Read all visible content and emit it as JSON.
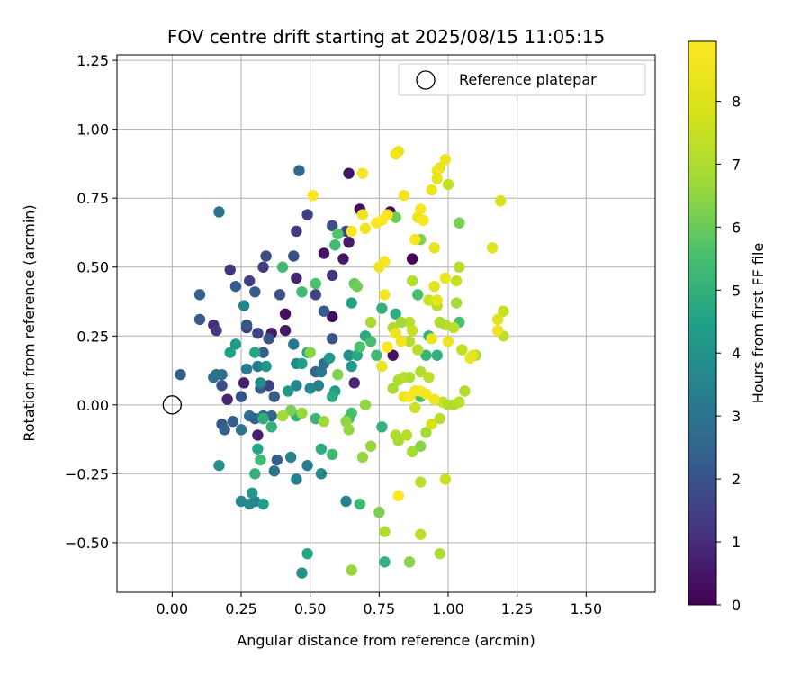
{
  "chart_data": {
    "type": "scatter",
    "title": "FOV centre drift starting at 2025/08/15 11:05:15",
    "xlabel": "Angular distance from reference (arcmin)",
    "ylabel": "Rotation from reference (arcmin)",
    "xlim": [
      -0.2,
      1.75
    ],
    "ylim": [
      -0.68,
      1.27
    ],
    "xticks": [
      "0.00",
      "0.25",
      "0.50",
      "0.75",
      "1.00",
      "1.25",
      "1.50"
    ],
    "xtick_values": [
      0,
      0.25,
      0.5,
      0.75,
      1.0,
      1.25,
      1.5
    ],
    "yticks": [
      "−0.50",
      "−0.25",
      "0.00",
      "0.25",
      "0.50",
      "0.75",
      "1.00",
      "1.25"
    ],
    "ytick_values": [
      -0.5,
      -0.25,
      0,
      0.25,
      0.5,
      0.75,
      1.0,
      1.25
    ],
    "grid": true,
    "legend": {
      "label": "Reference platepar",
      "placement": "top-right"
    },
    "reference_point": {
      "x": 0,
      "y": 0
    },
    "colorbar": {
      "label": "Hours from first FF file",
      "colormap": "viridis",
      "range": [
        0,
        8.95
      ],
      "ticks": [
        "0",
        "1",
        "2",
        "3",
        "4",
        "5",
        "6",
        "7",
        "8"
      ],
      "tick_values": [
        0,
        1,
        2,
        3,
        4,
        5,
        6,
        7,
        8
      ]
    },
    "points": [
      {
        "x": 0.68,
        "y": 0.71,
        "c": 0.3
      },
      {
        "x": 0.79,
        "y": 0.7,
        "c": 0.2
      },
      {
        "x": 0.64,
        "y": 0.84,
        "c": 0.4
      },
      {
        "x": 0.55,
        "y": 0.55,
        "c": 0.4
      },
      {
        "x": 0.62,
        "y": 0.53,
        "c": 0.5
      },
      {
        "x": 0.64,
        "y": 0.59,
        "c": 0.6
      },
      {
        "x": 0.58,
        "y": 0.32,
        "c": 0.3
      },
      {
        "x": 0.41,
        "y": 0.27,
        "c": 0.5
      },
      {
        "x": 0.41,
        "y": 0.33,
        "c": 0.3
      },
      {
        "x": 0.36,
        "y": 0.26,
        "c": 0.6
      },
      {
        "x": 0.87,
        "y": 0.53,
        "c": 0.1
      },
      {
        "x": 0.8,
        "y": 0.18,
        "c": 0.4
      },
      {
        "x": 0.45,
        "y": 0.46,
        "c": 0.8
      },
      {
        "x": 0.66,
        "y": 0.08,
        "c": 0.9
      },
      {
        "x": 0.26,
        "y": 0.08,
        "c": 0.7
      },
      {
        "x": 0.2,
        "y": 0.02,
        "c": 0.8
      },
      {
        "x": 0.31,
        "y": -0.11,
        "c": 0.7
      },
      {
        "x": 0.15,
        "y": 0.29,
        "c": 1.0
      },
      {
        "x": 0.16,
        "y": 0.27,
        "c": 1.3
      },
      {
        "x": 0.33,
        "y": 0.5,
        "c": 1.4
      },
      {
        "x": 0.21,
        "y": 0.49,
        "c": 1.2
      },
      {
        "x": 0.28,
        "y": 0.45,
        "c": 1.5
      },
      {
        "x": 0.34,
        "y": 0.54,
        "c": 1.8
      },
      {
        "x": 0.44,
        "y": 0.54,
        "c": 1.9
      },
      {
        "x": 0.45,
        "y": 0.63,
        "c": 1.4
      },
      {
        "x": 0.49,
        "y": 0.69,
        "c": 1.5
      },
      {
        "x": 0.58,
        "y": 0.47,
        "c": 1.2
      },
      {
        "x": 0.58,
        "y": 0.65,
        "c": 1.9
      },
      {
        "x": 0.63,
        "y": 0.63,
        "c": 1.6
      },
      {
        "x": 0.52,
        "y": 0.4,
        "c": 1.6
      },
      {
        "x": 0.39,
        "y": 0.4,
        "c": 1.9
      },
      {
        "x": 0.3,
        "y": 0.41,
        "c": 2.2
      },
      {
        "x": 0.23,
        "y": 0.43,
        "c": 2.3
      },
      {
        "x": 0.1,
        "y": 0.4,
        "c": 2.4
      },
      {
        "x": 0.1,
        "y": 0.31,
        "c": 2.2
      },
      {
        "x": 0.18,
        "y": 0.07,
        "c": 1.9
      },
      {
        "x": 0.25,
        "y": 0.03,
        "c": 2.0
      },
      {
        "x": 0.32,
        "y": 0.06,
        "c": 2.2
      },
      {
        "x": 0.35,
        "y": 0.07,
        "c": 1.5
      },
      {
        "x": 0.37,
        "y": 0.03,
        "c": 2.3
      },
      {
        "x": 0.27,
        "y": 0.28,
        "c": 1.4
      },
      {
        "x": 0.31,
        "y": 0.26,
        "c": 1.6
      },
      {
        "x": 0.35,
        "y": 0.24,
        "c": 2.0
      },
      {
        "x": 0.33,
        "y": 0.19,
        "c": 2.3
      },
      {
        "x": 0.27,
        "y": 0.29,
        "c": 2.1
      },
      {
        "x": 0.55,
        "y": 0.34,
        "c": 2.2
      },
      {
        "x": 0.58,
        "y": 0.24,
        "c": 2.0
      },
      {
        "x": 0.46,
        "y": 0.85,
        "c": 2.6
      },
      {
        "x": 0.17,
        "y": 0.7,
        "c": 3.0
      },
      {
        "x": 0.03,
        "y": 0.11,
        "c": 2.3
      },
      {
        "x": 0.16,
        "y": 0.11,
        "c": 2.6
      },
      {
        "x": 0.18,
        "y": 0.11,
        "c": 2.8
      },
      {
        "x": 0.15,
        "y": 0.1,
        "c": 2.9
      },
      {
        "x": 0.18,
        "y": -0.07,
        "c": 2.1
      },
      {
        "x": 0.19,
        "y": -0.09,
        "c": 2.4
      },
      {
        "x": 0.22,
        "y": -0.06,
        "c": 2.3
      },
      {
        "x": 0.25,
        "y": -0.09,
        "c": 3.0
      },
      {
        "x": 0.28,
        "y": -0.04,
        "c": 2.8
      },
      {
        "x": 0.3,
        "y": -0.05,
        "c": 2.5
      },
      {
        "x": 0.33,
        "y": -0.04,
        "c": 2.9
      },
      {
        "x": 0.36,
        "y": -0.04,
        "c": 2.6
      },
      {
        "x": 0.38,
        "y": -0.2,
        "c": 2.3
      },
      {
        "x": 0.3,
        "y": -0.35,
        "c": 3.3
      },
      {
        "x": 0.25,
        "y": -0.35,
        "c": 3.6
      },
      {
        "x": 0.28,
        "y": -0.36,
        "c": 3.7
      },
      {
        "x": 0.29,
        "y": -0.32,
        "c": 4.1
      },
      {
        "x": 0.33,
        "y": -0.36,
        "c": 4.4
      },
      {
        "x": 0.47,
        "y": -0.61,
        "c": 4.0
      },
      {
        "x": 0.49,
        "y": -0.54,
        "c": 4.6
      },
      {
        "x": 0.37,
        "y": -0.24,
        "c": 3.0
      },
      {
        "x": 0.45,
        "y": -0.27,
        "c": 3.4
      },
      {
        "x": 0.54,
        "y": -0.25,
        "c": 3.7
      },
      {
        "x": 0.63,
        "y": -0.35,
        "c": 3.5
      },
      {
        "x": 0.43,
        "y": -0.19,
        "c": 3.5
      },
      {
        "x": 0.49,
        "y": -0.22,
        "c": 3.3
      },
      {
        "x": 0.17,
        "y": -0.22,
        "c": 3.9
      },
      {
        "x": 0.27,
        "y": 0.13,
        "c": 3.3
      },
      {
        "x": 0.31,
        "y": 0.14,
        "c": 3.2
      },
      {
        "x": 0.26,
        "y": 0.36,
        "c": 3.6
      },
      {
        "x": 0.21,
        "y": 0.19,
        "c": 4.5
      },
      {
        "x": 0.23,
        "y": 0.22,
        "c": 4.3
      },
      {
        "x": 0.3,
        "y": 0.19,
        "c": 4.6
      },
      {
        "x": 0.32,
        "y": 0.08,
        "c": 3.7
      },
      {
        "x": 0.34,
        "y": 0.14,
        "c": 4.1
      },
      {
        "x": 0.44,
        "y": 0.22,
        "c": 3.2
      },
      {
        "x": 0.45,
        "y": 0.07,
        "c": 3.6
      },
      {
        "x": 0.52,
        "y": 0.12,
        "c": 2.5
      },
      {
        "x": 0.54,
        "y": 0.12,
        "c": 3.1
      },
      {
        "x": 0.55,
        "y": 0.15,
        "c": 2.8
      },
      {
        "x": 0.53,
        "y": 0.07,
        "c": 3.3
      },
      {
        "x": 0.5,
        "y": 0.06,
        "c": 3.6
      },
      {
        "x": 0.45,
        "y": 0.15,
        "c": 3.8
      },
      {
        "x": 0.42,
        "y": 0.05,
        "c": 4.2
      },
      {
        "x": 0.47,
        "y": 0.15,
        "c": 4.4
      },
      {
        "x": 0.49,
        "y": 0.19,
        "c": 4.6
      },
      {
        "x": 0.57,
        "y": 0.17,
        "c": 4.2
      },
      {
        "x": 0.59,
        "y": 0.05,
        "c": 4.4
      },
      {
        "x": 0.58,
        "y": 0.03,
        "c": 4.8
      },
      {
        "x": 0.64,
        "y": 0.18,
        "c": 3.9
      },
      {
        "x": 0.65,
        "y": 0.14,
        "c": 4.3
      },
      {
        "x": 0.67,
        "y": 0.18,
        "c": 4.7
      },
      {
        "x": 0.65,
        "y": 0.37,
        "c": 4.5
      },
      {
        "x": 0.7,
        "y": 0.25,
        "c": 4.8
      },
      {
        "x": 0.76,
        "y": 0.35,
        "c": 5.0
      },
      {
        "x": 0.3,
        "y": -0.25,
        "c": 5.0
      },
      {
        "x": 0.31,
        "y": -0.16,
        "c": 4.6
      },
      {
        "x": 0.32,
        "y": -0.2,
        "c": 5.4
      },
      {
        "x": 0.33,
        "y": -0.05,
        "c": 4.9
      },
      {
        "x": 0.36,
        "y": -0.08,
        "c": 5.0
      },
      {
        "x": 0.45,
        "y": -0.04,
        "c": 5.1
      },
      {
        "x": 0.52,
        "y": -0.05,
        "c": 5.2
      },
      {
        "x": 0.54,
        "y": -0.16,
        "c": 4.9
      },
      {
        "x": 0.58,
        "y": -0.18,
        "c": 5.3
      },
      {
        "x": 0.64,
        "y": -0.05,
        "c": 5.3
      },
      {
        "x": 0.65,
        "y": -0.03,
        "c": 5.5
      },
      {
        "x": 0.68,
        "y": -0.36,
        "c": 5.3
      },
      {
        "x": 0.77,
        "y": -0.57,
        "c": 5.0
      },
      {
        "x": 0.76,
        "y": -0.08,
        "c": 5.0
      },
      {
        "x": 0.4,
        "y": 0.5,
        "c": 5.3
      },
      {
        "x": 0.47,
        "y": 0.41,
        "c": 5.3
      },
      {
        "x": 0.52,
        "y": 0.44,
        "c": 5.6
      },
      {
        "x": 0.59,
        "y": 0.58,
        "c": 5.4
      },
      {
        "x": 0.6,
        "y": 0.62,
        "c": 5.7
      },
      {
        "x": 0.66,
        "y": 0.44,
        "c": 5.9
      },
      {
        "x": 0.67,
        "y": 0.43,
        "c": 6.1
      },
      {
        "x": 0.68,
        "y": 0.21,
        "c": 5.6
      },
      {
        "x": 0.72,
        "y": 0.23,
        "c": 5.5
      },
      {
        "x": 0.74,
        "y": 0.18,
        "c": 5.3
      },
      {
        "x": 0.81,
        "y": 0.33,
        "c": 4.9
      },
      {
        "x": 0.89,
        "y": 0.4,
        "c": 5.5
      },
      {
        "x": 0.92,
        "y": 0.18,
        "c": 5.1
      },
      {
        "x": 0.93,
        "y": 0.25,
        "c": 5.0
      },
      {
        "x": 0.96,
        "y": 0.18,
        "c": 5.0
      },
      {
        "x": 0.88,
        "y": 0.05,
        "c": 4.8
      },
      {
        "x": 0.9,
        "y": 0.03,
        "c": 5.4
      },
      {
        "x": 1.04,
        "y": 0.3,
        "c": 5.6
      },
      {
        "x": 1.04,
        "y": 0.66,
        "c": 6.2
      },
      {
        "x": 0.9,
        "y": 0.6,
        "c": 6.3
      },
      {
        "x": 0.81,
        "y": 0.68,
        "c": 6.1
      },
      {
        "x": 0.5,
        "y": 0.19,
        "c": 6.4
      },
      {
        "x": 0.6,
        "y": 0.11,
        "c": 6.3
      },
      {
        "x": 0.7,
        "y": 0.0,
        "c": 6.5
      },
      {
        "x": 0.47,
        "y": -0.03,
        "c": 6.6
      },
      {
        "x": 0.43,
        "y": -0.02,
        "c": 6.2
      },
      {
        "x": 0.4,
        "y": -0.04,
        "c": 6.8
      },
      {
        "x": 0.55,
        "y": -0.06,
        "c": 6.7
      },
      {
        "x": 0.63,
        "y": -0.06,
        "c": 6.5
      },
      {
        "x": 0.64,
        "y": -0.09,
        "c": 6.6
      },
      {
        "x": 0.69,
        "y": -0.19,
        "c": 6.6
      },
      {
        "x": 0.72,
        "y": -0.15,
        "c": 6.6
      },
      {
        "x": 0.75,
        "y": -0.39,
        "c": 6.2
      },
      {
        "x": 0.86,
        "y": -0.57,
        "c": 6.4
      },
      {
        "x": 0.65,
        "y": -0.6,
        "c": 6.6
      },
      {
        "x": 0.77,
        "y": -0.46,
        "c": 7.0
      },
      {
        "x": 0.81,
        "y": -0.11,
        "c": 7.0
      },
      {
        "x": 0.82,
        "y": -0.13,
        "c": 6.9
      },
      {
        "x": 0.85,
        "y": -0.11,
        "c": 7.2
      },
      {
        "x": 0.87,
        "y": -0.17,
        "c": 6.8
      },
      {
        "x": 0.9,
        "y": -0.15,
        "c": 6.4
      },
      {
        "x": 0.92,
        "y": -0.1,
        "c": 6.8
      },
      {
        "x": 0.9,
        "y": -0.28,
        "c": 7.2
      },
      {
        "x": 0.9,
        "y": -0.47,
        "c": 7.3
      },
      {
        "x": 0.97,
        "y": -0.54,
        "c": 7.0
      },
      {
        "x": 0.99,
        "y": -0.27,
        "c": 7.6
      },
      {
        "x": 0.94,
        "y": -0.07,
        "c": 7.8
      },
      {
        "x": 0.8,
        "y": 0.06,
        "c": 6.9
      },
      {
        "x": 0.82,
        "y": 0.09,
        "c": 7.0
      },
      {
        "x": 0.84,
        "y": 0.1,
        "c": 7.2
      },
      {
        "x": 0.86,
        "y": 0.1,
        "c": 7.0
      },
      {
        "x": 0.9,
        "y": 0.12,
        "c": 7.1
      },
      {
        "x": 0.88,
        "y": -0.01,
        "c": 7.6
      },
      {
        "x": 0.93,
        "y": 0.1,
        "c": 7.3
      },
      {
        "x": 0.97,
        "y": -0.05,
        "c": 7.2
      },
      {
        "x": 0.98,
        "y": 0.01,
        "c": 7.5
      },
      {
        "x": 1.0,
        "y": 0.0,
        "c": 7.1
      },
      {
        "x": 1.02,
        "y": 0.0,
        "c": 7.0
      },
      {
        "x": 1.04,
        "y": 0.01,
        "c": 7.3
      },
      {
        "x": 1.06,
        "y": 0.05,
        "c": 7.1
      },
      {
        "x": 1.05,
        "y": 0.2,
        "c": 7.4
      },
      {
        "x": 1.1,
        "y": 0.18,
        "c": 7.0
      },
      {
        "x": 1.02,
        "y": 0.28,
        "c": 7.3
      },
      {
        "x": 0.99,
        "y": 0.29,
        "c": 7.2
      },
      {
        "x": 0.97,
        "y": 0.3,
        "c": 7.0
      },
      {
        "x": 0.96,
        "y": 0.36,
        "c": 7.2
      },
      {
        "x": 1.03,
        "y": 0.37,
        "c": 6.8
      },
      {
        "x": 1.03,
        "y": 0.45,
        "c": 7.5
      },
      {
        "x": 1.04,
        "y": 0.5,
        "c": 7.2
      },
      {
        "x": 0.87,
        "y": 0.45,
        "c": 7.1
      },
      {
        "x": 0.93,
        "y": 0.38,
        "c": 7.6
      },
      {
        "x": 0.86,
        "y": 0.3,
        "c": 7.2
      },
      {
        "x": 0.8,
        "y": 0.28,
        "c": 7.0
      },
      {
        "x": 0.83,
        "y": 0.3,
        "c": 6.8
      },
      {
        "x": 0.72,
        "y": 0.3,
        "c": 6.9
      },
      {
        "x": 0.78,
        "y": 0.21,
        "c": 6.9
      },
      {
        "x": 0.86,
        "y": 0.23,
        "c": 7.1
      },
      {
        "x": 0.89,
        "y": 0.2,
        "c": 7.2
      },
      {
        "x": 0.87,
        "y": 0.27,
        "c": 7.5
      },
      {
        "x": 1.0,
        "y": 0.8,
        "c": 7.4
      },
      {
        "x": 1.19,
        "y": 0.74,
        "c": 7.8
      },
      {
        "x": 1.2,
        "y": 0.34,
        "c": 7.5
      },
      {
        "x": 1.2,
        "y": 0.25,
        "c": 7.3
      },
      {
        "x": 1.18,
        "y": 0.31,
        "c": 8.0
      },
      {
        "x": 1.09,
        "y": 0.18,
        "c": 8.1
      },
      {
        "x": 0.95,
        "y": 0.43,
        "c": 8.1
      },
      {
        "x": 0.96,
        "y": 0.38,
        "c": 8.2
      },
      {
        "x": 0.94,
        "y": 0.24,
        "c": 8.3
      },
      {
        "x": 0.95,
        "y": 0.57,
        "c": 8.3
      },
      {
        "x": 0.99,
        "y": 0.46,
        "c": 8.4
      },
      {
        "x": 1.0,
        "y": 0.23,
        "c": 8.5
      },
      {
        "x": 0.97,
        "y": 0.86,
        "c": 8.2
      },
      {
        "x": 0.96,
        "y": 0.85,
        "c": 8.6
      },
      {
        "x": 0.96,
        "y": 0.82,
        "c": 8.3
      },
      {
        "x": 0.99,
        "y": 0.89,
        "c": 8.5
      },
      {
        "x": 0.94,
        "y": 0.78,
        "c": 8.4
      },
      {
        "x": 0.82,
        "y": 0.92,
        "c": 8.3
      },
      {
        "x": 0.81,
        "y": 0.91,
        "c": 8.6
      },
      {
        "x": 0.84,
        "y": 0.76,
        "c": 8.6
      },
      {
        "x": 0.89,
        "y": 0.68,
        "c": 8.3
      },
      {
        "x": 0.9,
        "y": 0.71,
        "c": 8.8
      },
      {
        "x": 0.91,
        "y": 0.67,
        "c": 8.7
      },
      {
        "x": 0.88,
        "y": 0.6,
        "c": 8.8
      },
      {
        "x": 0.78,
        "y": 0.69,
        "c": 8.8
      },
      {
        "x": 0.76,
        "y": 0.67,
        "c": 8.9
      },
      {
        "x": 0.74,
        "y": 0.66,
        "c": 8.9
      },
      {
        "x": 0.7,
        "y": 0.64,
        "c": 8.6
      },
      {
        "x": 0.69,
        "y": 0.69,
        "c": 8.5
      },
      {
        "x": 0.65,
        "y": 0.63,
        "c": 8.7
      },
      {
        "x": 0.69,
        "y": 0.84,
        "c": 8.8
      },
      {
        "x": 0.51,
        "y": 0.76,
        "c": 8.8
      },
      {
        "x": 0.77,
        "y": 0.52,
        "c": 8.7
      },
      {
        "x": 0.75,
        "y": 0.5,
        "c": 8.6
      },
      {
        "x": 0.77,
        "y": 0.4,
        "c": 8.7
      },
      {
        "x": 0.76,
        "y": 0.14,
        "c": 8.4
      },
      {
        "x": 0.78,
        "y": 0.21,
        "c": 8.9
      },
      {
        "x": 0.81,
        "y": 0.26,
        "c": 8.5
      },
      {
        "x": 0.83,
        "y": 0.23,
        "c": 8.6
      },
      {
        "x": 0.88,
        "y": 0.05,
        "c": 8.8
      },
      {
        "x": 0.84,
        "y": 0.03,
        "c": 8.4
      },
      {
        "x": 0.86,
        "y": 0.03,
        "c": 8.8
      },
      {
        "x": 0.9,
        "y": 0.05,
        "c": 8.9
      },
      {
        "x": 0.92,
        "y": 0.04,
        "c": 8.7
      },
      {
        "x": 0.95,
        "y": 0.02,
        "c": 8.6
      },
      {
        "x": 0.82,
        "y": -0.33,
        "c": 8.9
      },
      {
        "x": 1.08,
        "y": 0.17,
        "c": 8.3
      },
      {
        "x": 1.16,
        "y": 0.57,
        "c": 8.1
      },
      {
        "x": 1.18,
        "y": 0.27,
        "c": 8.5
      }
    ]
  }
}
